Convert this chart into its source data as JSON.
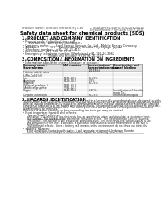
{
  "bg_color": "#ffffff",
  "header_left": "Product Name: Lithium Ion Battery Cell",
  "header_right1": "Substance Control: SDS-049-00010",
  "header_right2": "Establishment / Revision: Dec.7.2016",
  "title": "Safety data sheet for chemical products (SDS)",
  "section1_title": "1. PRODUCT AND COMPANY IDENTIFICATION",
  "section1_lines": [
    "• Product name: Lithium Ion Battery Cell",
    "• Product code: Cylindrical type cell",
    "    SNY-B6500J,  SNY-B650J,  SNY-B650A",
    "• Company name:       Sony Energy Devices Co., Ltd., Mobile Energy Company",
    "• Address:             2221  Kamikodanaka, Sunoko-City, Hyogo, Japan",
    "• Telephone number:   +81-799-26-4111",
    "• Fax number:  +81-799-26-4120",
    "• Emergency telephone number (Weekdays) +81-799-26-3962",
    "                             (Night and holiday) +81-799-26-4101"
  ],
  "section2_title": "2. COMPOSITION / INFORMATION ON INGREDIENTS",
  "section2_sub": "• Substance or preparation: Preparation",
  "section2_sub2": "• Information about the chemical nature of product:",
  "table_col_headers_row1": [
    "Common name /",
    "CAS number",
    "Concentration /",
    "Classification and"
  ],
  "table_col_headers_row2": [
    "Several name",
    "",
    "Concentration range",
    "hazard labeling"
  ],
  "table_col_headers_row3": [
    "",
    "",
    "(10-65%)",
    ""
  ],
  "table_rows": [
    [
      "Lithium cobalt oxide",
      "-",
      "-",
      "-"
    ],
    [
      "(LiMn-CoO2(x))",
      "",
      "",
      ""
    ],
    [
      "Iron",
      "7439-89-6",
      "16-25%",
      "-"
    ],
    [
      "Aluminum",
      "7429-90-5",
      "2-5%",
      "-"
    ],
    [
      "Graphite",
      "",
      "10-25%",
      ""
    ],
    [
      "(Natural graphite-I)",
      "7782-42-5",
      "",
      "-"
    ],
    [
      "(Artificial graphite)",
      "7782-42-5",
      "",
      ""
    ],
    [
      "Copper",
      "7440-50-8",
      "5-10%",
      "Sensitization of the skin"
    ],
    [
      "",
      "",
      "",
      "group No.2"
    ],
    [
      "Organic electrolyte",
      "-",
      "10-25%",
      "Inflammation liquid"
    ]
  ],
  "section3_title": "3. HAZARDS IDENTIFICATION",
  "section3_lines": [
    "For this battery cell, chemical substances are stored in a hermetically sealed metal case, designed to withstand",
    "temperatures and pressure/environment changes during normal use. As a result, during normal use, there is no",
    "physical change or irritation by respiration and inflammation in the skin of batteries or electrolyte leakage.",
    "However, if exposed to a fire, added mechanical shocks, decomposed, without electro without its miss-use,",
    "the gas release cannot be operated. The battery cell case will be punched of fire-particles, hazardous",
    "materials may be released.",
    "Moreover, if heated strongly by the surrounding fire, toxic gas may be emitted."
  ],
  "section3_bullet1": "• Most important hazard and effects:",
  "section3_health_title": "Human health effects:",
  "section3_health_lines": [
    "Inhalation:  The release of the electrolyte has an anesthesia action and stimulates a respiratory tract.",
    "Skin contact:  The release of the electrolyte stimulates a skin.  The electrolyte skin contact causes a",
    "sore and stimulation of the skin.",
    "Eye contact:  The release of the electrolyte stimulates eyes.  The electrolyte eye contact causes a sore",
    "and stimulation of the eye.  Especially, a substance that causes a strong inflammation of the eye is",
    "contained.",
    "Environmental effects:  Since a battery cell remains in the environment, do not throw out it into the",
    "environment."
  ],
  "section3_specific_title": "• Specific hazards:",
  "section3_specific_lines": [
    "If the electrolyte contacts with water, it will generate detrimental hydrogen fluoride.",
    "Since the leaked electrolyte is inflammation liquid, do not bring close to fire."
  ]
}
